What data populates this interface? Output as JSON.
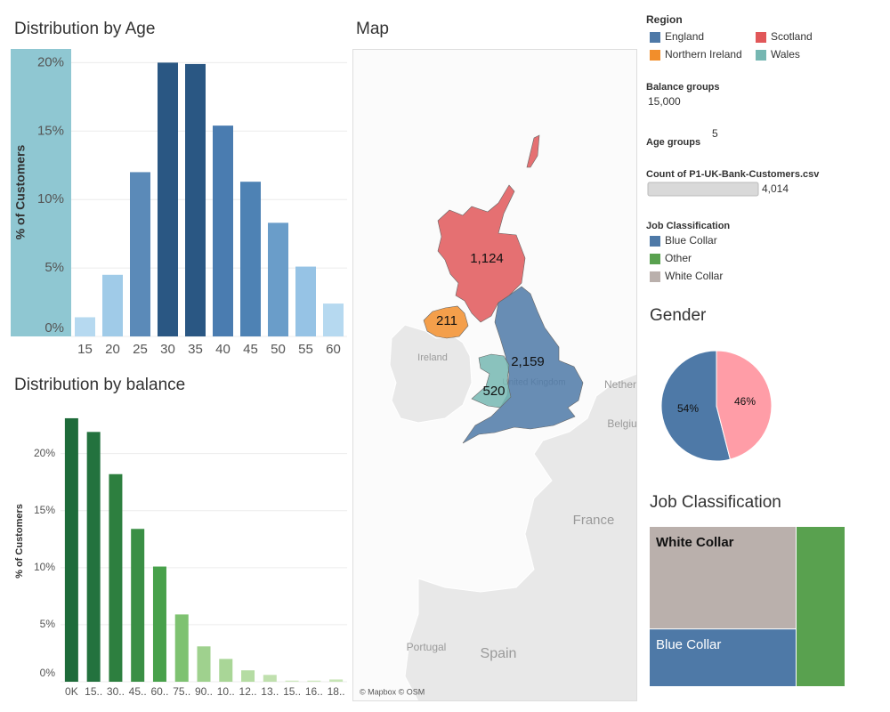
{
  "chart_data": [
    {
      "type": "bar",
      "title": "Distribution by Age",
      "y_label": "% of Customers",
      "categories": [
        "15",
        "20",
        "25",
        "30",
        "35",
        "40",
        "45",
        "50",
        "55",
        "60"
      ],
      "values": [
        1.4,
        4.5,
        12.0,
        20.0,
        19.9,
        15.4,
        11.3,
        8.3,
        5.1,
        2.4
      ],
      "colors": [
        "#b6d9f0",
        "#a0cbe8",
        "#5b8ab8",
        "#2a5783",
        "#2a5783",
        "#4a7cb0",
        "#4e82b4",
        "#6a9dc9",
        "#96c3e5",
        "#b6d9f0"
      ],
      "ylim": [
        0,
        21
      ],
      "yticks": [
        {
          "value": 0,
          "label": "0%"
        },
        {
          "value": 5,
          "label": "5%"
        },
        {
          "value": 10,
          "label": "10%"
        },
        {
          "value": 15,
          "label": "15%"
        },
        {
          "value": 20,
          "label": "20%"
        }
      ],
      "grid": true
    },
    {
      "type": "bar",
      "title": "Distribution by balance",
      "y_label": "% of Customers",
      "categories": [
        "0K",
        "15..",
        "30..",
        "45..",
        "60..",
        "75..",
        "90..",
        "10..",
        "12..",
        "13..",
        "15..",
        "16..",
        "18.."
      ],
      "values": [
        23.1,
        21.9,
        18.2,
        13.4,
        10.1,
        5.9,
        3.1,
        2.0,
        1.0,
        0.6,
        0.1,
        0.1,
        0.2
      ],
      "colors": [
        "#1e6b3a",
        "#23723e",
        "#2d7f3f",
        "#3a8f45",
        "#48a14b",
        "#7ec271",
        "#9fd18e",
        "#a9d697",
        "#b5dca3",
        "#c0e0ae",
        "#cfe9c0",
        "#cfe9c0",
        "#c7e5b6"
      ],
      "ylim": [
        0,
        24.5
      ],
      "yticks": [
        {
          "value": 0,
          "label": "0%"
        },
        {
          "value": 5,
          "label": "5%"
        },
        {
          "value": 10,
          "label": "10%"
        },
        {
          "value": 15,
          "label": "15%"
        },
        {
          "value": 20,
          "label": "20%"
        }
      ],
      "grid": true
    },
    {
      "type": "map",
      "title": "Map",
      "legend_title": "Region",
      "categories": [
        "England",
        "Scotland",
        "Northern Ireland",
        "Wales"
      ],
      "values": [
        2159,
        1124,
        211,
        520
      ],
      "value_labels": [
        "2,159",
        "1,124",
        "211",
        "520"
      ],
      "colors": [
        "#4e79a7",
        "#e15759",
        "#f28e2b",
        "#76b7b2"
      ],
      "basemap_labels": [
        "Ireland",
        "United Kingdom",
        "Nether",
        "Belgiu",
        "France",
        "Portugal",
        "Spain"
      ],
      "attribution": "© Mapbox © OSM"
    },
    {
      "type": "pie",
      "title": "Gender",
      "values": [
        54,
        46
      ],
      "value_labels": [
        "54%",
        "46%"
      ],
      "colors": [
        "#4e79a7",
        "#ff9da7"
      ]
    },
    {
      "type": "treemap",
      "title": "Job Classification",
      "categories": [
        "White Collar",
        "Blue Collar",
        null
      ],
      "values": [
        48,
        27,
        25
      ],
      "colors": [
        "#bab0ac",
        "#4e79a7",
        "#59a14f"
      ]
    }
  ],
  "controls": {
    "job_legend": {
      "title": "Job Classification",
      "items": [
        {
          "name": "Blue Collar",
          "color": "#4e79a7"
        },
        {
          "name": "Other",
          "color": "#59a14f"
        },
        {
          "name": "White Collar",
          "color": "#bab0ac"
        }
      ]
    },
    "balance_groups": {
      "label": "Balance groups",
      "value": "15,000"
    },
    "age_groups": {
      "label": "Age groups",
      "value": 5
    },
    "row_count": {
      "label": "Count of P1-UK-Bank-Customers.csv",
      "value": "4,014"
    }
  }
}
